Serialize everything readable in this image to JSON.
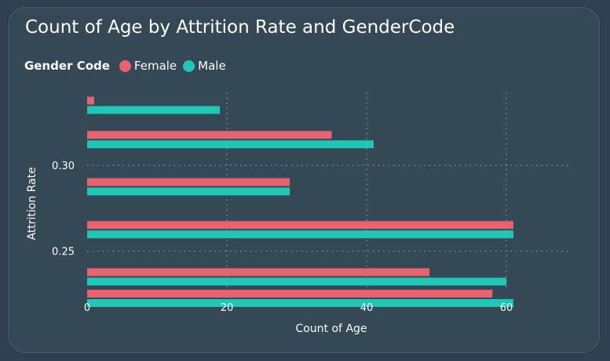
{
  "chart_data": {
    "type": "bar",
    "orientation": "horizontal",
    "title": "Count of Age by Attrition Rate and GenderCode",
    "legend": {
      "title": "Gender Code",
      "placement": "top-left",
      "items": [
        {
          "name": "Female",
          "color": "#e8636f"
        },
        {
          "name": "Male",
          "color": "#1fc8b5"
        }
      ]
    },
    "xlabel": "Count of Age",
    "ylabel": "Attrition Rate",
    "xlim": [
      0,
      70
    ],
    "xticks": [
      0,
      20,
      40,
      60
    ],
    "ylim": [
      0.2275,
      0.3425
    ],
    "yticks": [
      0.25,
      0.3
    ],
    "ytick_labels": [
      "0.25",
      "0.30"
    ],
    "grid": true,
    "series": [
      {
        "name": "Female",
        "color": "#e8636f",
        "values": [
          {
            "y": 0.335,
            "x": 1
          },
          {
            "y": 0.315,
            "x": 35
          },
          {
            "y": 0.2875,
            "x": 29
          },
          {
            "y": 0.2625,
            "x": 61
          },
          {
            "y": 0.235,
            "x": 49
          },
          {
            "y": 0.2225,
            "x": 58
          }
        ]
      },
      {
        "name": "Male",
        "color": "#1fc8b5",
        "values": [
          {
            "y": 0.335,
            "x": 19
          },
          {
            "y": 0.315,
            "x": 41
          },
          {
            "y": 0.2875,
            "x": 29
          },
          {
            "y": 0.2625,
            "x": 61
          },
          {
            "y": 0.235,
            "x": 60
          },
          {
            "y": 0.2225,
            "x": 61
          }
        ]
      }
    ]
  }
}
